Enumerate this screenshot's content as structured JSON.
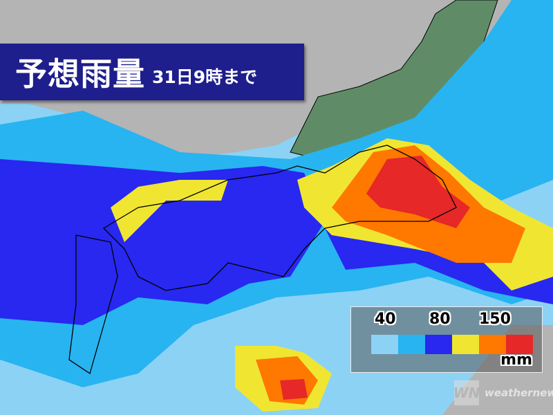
{
  "title": {
    "main": "予想雨量",
    "sub": "31日9時まで"
  },
  "legend": {
    "labels": [
      "40",
      "80",
      "150"
    ],
    "unit": "mm",
    "colors": [
      "#8cd2f5",
      "#28b4f0",
      "#2828f0",
      "#f0e632",
      "#ff7800",
      "#e62828"
    ]
  },
  "brand": {
    "logo": "WN",
    "name": "weathernews"
  },
  "colors": {
    "land": "#b4b4b4",
    "no_rain_region": "#5f8c67",
    "title_bg": "#1e1e8c"
  }
}
